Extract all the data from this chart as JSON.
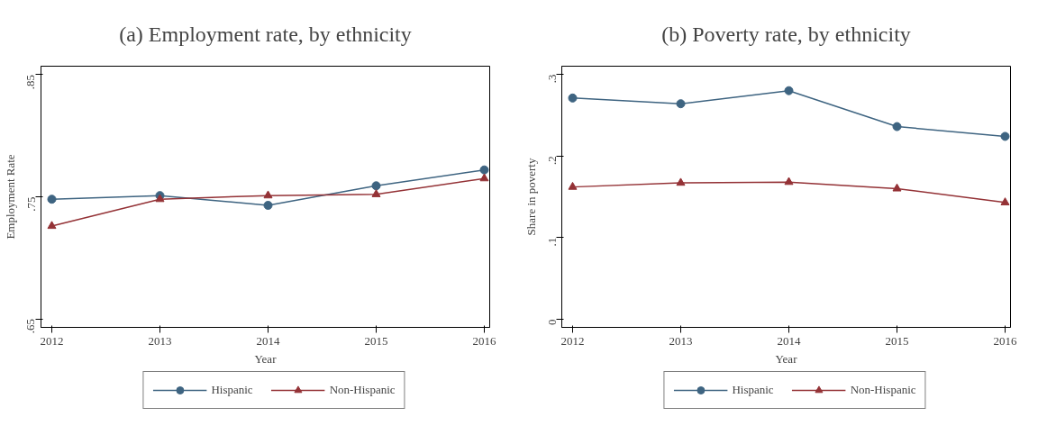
{
  "chart_data": [
    {
      "type": "line",
      "title": "(a) Employment rate, by ethnicity",
      "xlabel": "Year",
      "ylabel": "Employment Rate",
      "x": [
        2012,
        2013,
        2014,
        2015,
        2016
      ],
      "series": [
        {
          "name": "Hispanic",
          "color": "#3e6481",
          "marker": "circle",
          "values": [
            0.748,
            0.751,
            0.743,
            0.759,
            0.772
          ]
        },
        {
          "name": "Non-Hispanic",
          "color": "#943236",
          "marker": "triangle",
          "values": [
            0.726,
            0.748,
            0.751,
            0.752,
            0.765
          ]
        }
      ],
      "xlim": [
        2011.9,
        2016.05
      ],
      "xticks": [
        2012,
        2013,
        2014,
        2015,
        2016
      ],
      "ylim": [
        0.643,
        0.857
      ],
      "yticks": [
        {
          "value": 0.65,
          "label": ".65"
        },
        {
          "value": 0.75,
          "label": ".75"
        },
        {
          "value": 0.85,
          "label": ".85"
        }
      ],
      "grid": false,
      "legend": "bottom",
      "line_style": "solid"
    },
    {
      "type": "line",
      "title": "(b) Poverty rate, by ethnicity",
      "xlabel": "Year",
      "ylabel": "Share in poverty",
      "x": [
        2012,
        2013,
        2014,
        2015,
        2016
      ],
      "series": [
        {
          "name": "Hispanic",
          "color": "#3e6481",
          "marker": "circle",
          "values": [
            0.271,
            0.264,
            0.28,
            0.236,
            0.224
          ]
        },
        {
          "name": "Non-Hispanic",
          "color": "#943236",
          "marker": "triangle",
          "values": [
            0.162,
            0.167,
            0.168,
            0.16,
            0.143
          ]
        }
      ],
      "xlim": [
        2011.9,
        2016.05
      ],
      "xticks": [
        2012,
        2013,
        2014,
        2015,
        2016
      ],
      "ylim": [
        -0.01,
        0.31
      ],
      "yticks": [
        0,
        {
          "value": 0.1,
          "label": ".1"
        },
        {
          "value": 0.2,
          "label": ".2"
        },
        {
          "value": 0.3,
          "label": ".3"
        }
      ],
      "grid": false,
      "legend": "bottom",
      "line_style": "solid"
    }
  ]
}
